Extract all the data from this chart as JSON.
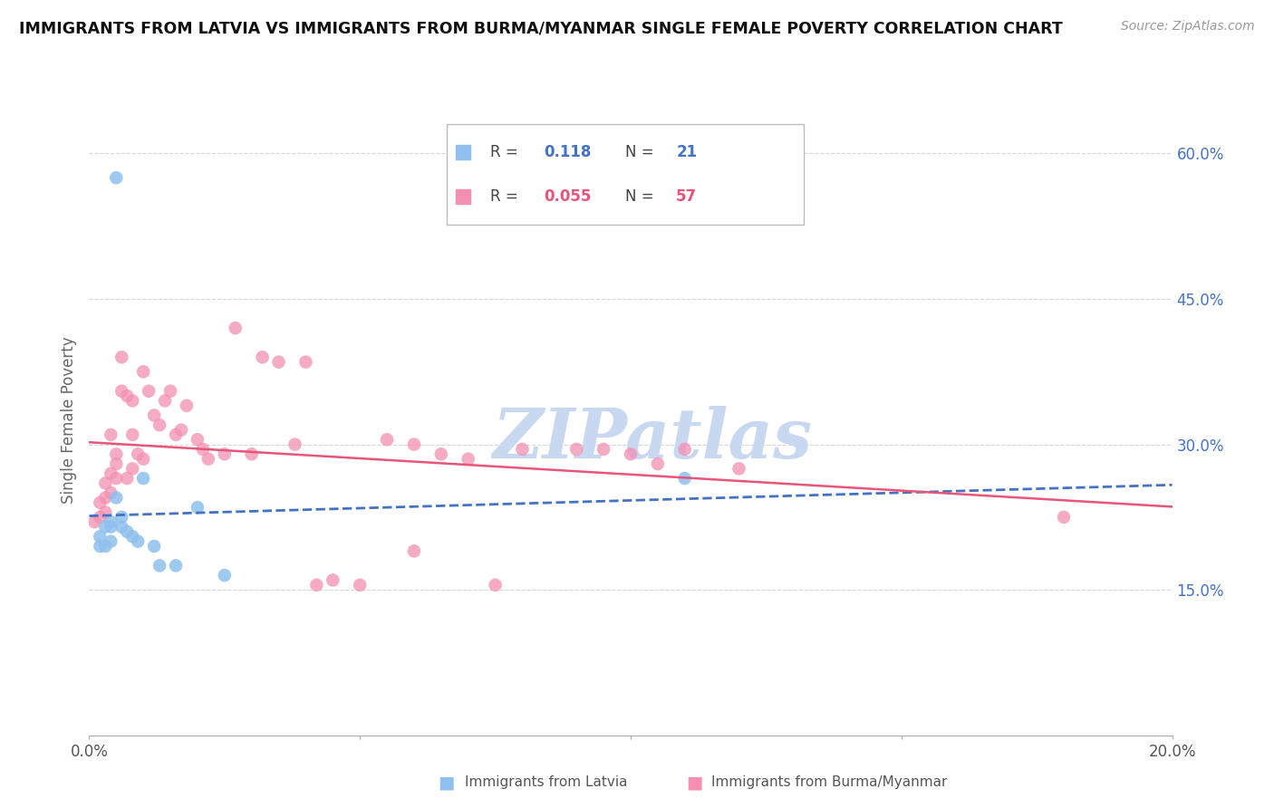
{
  "title": "IMMIGRANTS FROM LATVIA VS IMMIGRANTS FROM BURMA/MYANMAR SINGLE FEMALE POVERTY CORRELATION CHART",
  "source": "Source: ZipAtlas.com",
  "ylabel": "Single Female Poverty",
  "xlim": [
    0.0,
    0.2
  ],
  "ylim": [
    0.0,
    0.65
  ],
  "color_latvia": "#90C0EE",
  "color_burma": "#F48FB1",
  "trendline_color_latvia": "#4472C4",
  "trendline_color_burma": "#E8557A",
  "watermark": "ZIPatlas",
  "watermark_color": "#C8D8F0",
  "background_color": "#FFFFFF",
  "grid_color": "#CCCCCC",
  "latvia_x": [
    0.002,
    0.002,
    0.003,
    0.003,
    0.004,
    0.004,
    0.004,
    0.005,
    0.005,
    0.006,
    0.006,
    0.007,
    0.008,
    0.009,
    0.01,
    0.012,
    0.013,
    0.016,
    0.02,
    0.025,
    0.11
  ],
  "latvia_y": [
    0.205,
    0.195,
    0.215,
    0.195,
    0.22,
    0.215,
    0.2,
    0.245,
    0.575,
    0.225,
    0.215,
    0.21,
    0.205,
    0.2,
    0.265,
    0.195,
    0.175,
    0.175,
    0.235,
    0.165,
    0.265
  ],
  "burma_x": [
    0.001,
    0.002,
    0.002,
    0.003,
    0.003,
    0.003,
    0.004,
    0.004,
    0.004,
    0.005,
    0.005,
    0.005,
    0.006,
    0.006,
    0.007,
    0.007,
    0.008,
    0.008,
    0.008,
    0.009,
    0.01,
    0.01,
    0.011,
    0.012,
    0.013,
    0.014,
    0.015,
    0.016,
    0.017,
    0.018,
    0.02,
    0.021,
    0.022,
    0.025,
    0.027,
    0.03,
    0.032,
    0.035,
    0.038,
    0.04,
    0.042,
    0.045,
    0.05,
    0.055,
    0.06,
    0.065,
    0.07,
    0.075,
    0.08,
    0.09,
    0.095,
    0.1,
    0.105,
    0.11,
    0.12,
    0.18,
    0.06
  ],
  "burma_y": [
    0.22,
    0.24,
    0.225,
    0.23,
    0.245,
    0.26,
    0.25,
    0.31,
    0.27,
    0.28,
    0.265,
    0.29,
    0.39,
    0.355,
    0.35,
    0.265,
    0.345,
    0.31,
    0.275,
    0.29,
    0.285,
    0.375,
    0.355,
    0.33,
    0.32,
    0.345,
    0.355,
    0.31,
    0.315,
    0.34,
    0.305,
    0.295,
    0.285,
    0.29,
    0.42,
    0.29,
    0.39,
    0.385,
    0.3,
    0.385,
    0.155,
    0.16,
    0.155,
    0.305,
    0.3,
    0.29,
    0.285,
    0.155,
    0.295,
    0.295,
    0.295,
    0.29,
    0.28,
    0.295,
    0.275,
    0.225,
    0.19
  ]
}
